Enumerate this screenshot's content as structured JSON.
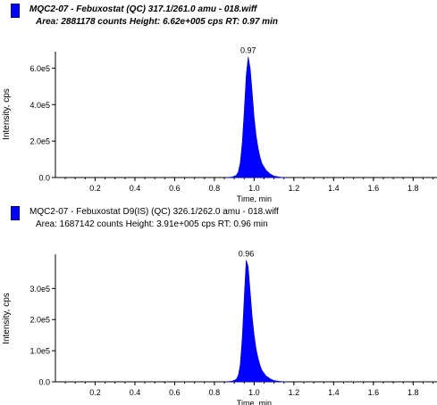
{
  "chart_data": [
    {
      "type": "area",
      "header_line1": "MQC2-07 - Febuxostat (QC) 317.1/261.0 amu - 018.wiff",
      "header_line2": "Area: 2881178 counts  Height: 6.62e+005 cps  RT: 0.97 min",
      "header_style": "bold-italic",
      "xlabel": "Time, min",
      "ylabel": "Intensity, cps",
      "xlim": [
        0.0,
        1.92
      ],
      "ylim": [
        0,
        690000
      ],
      "x_ticks": [
        0.2,
        0.4,
        0.6,
        0.8,
        1.0,
        1.2,
        1.4,
        1.6,
        1.8
      ],
      "x_tick_labels": [
        "0.2",
        "0.4",
        "0.6",
        "0.8",
        "1.0",
        "1.2",
        "1.4",
        "1.6",
        "1.8"
      ],
      "y_ticks": [
        0,
        200000,
        400000,
        600000
      ],
      "y_tick_labels": [
        "0.0",
        "2.0e5",
        "4.0e5",
        "6.0e5"
      ],
      "peak_label": "0.97",
      "peak_label_x": 0.97,
      "peak_label_y": 662000,
      "fill_color": "#0000ff",
      "x": [
        0.86,
        0.89,
        0.91,
        0.92,
        0.93,
        0.94,
        0.95,
        0.96,
        0.97,
        0.98,
        0.99,
        1.0,
        1.01,
        1.02,
        1.03,
        1.04,
        1.06,
        1.08,
        1.1,
        1.13,
        1.16
      ],
      "y": [
        0,
        3000,
        12000,
        30000,
        80000,
        190000,
        360000,
        560000,
        662000,
        600000,
        470000,
        330000,
        230000,
        160000,
        110000,
        75000,
        40000,
        20000,
        8000,
        2500,
        0
      ]
    },
    {
      "type": "area",
      "header_line1": "MQC2-07 - Febuxostat D9(IS) (QC) 326.1/262.0 amu - 018.wiff",
      "header_line2": "Area: 1687142 counts  Height: 3.91e+005 cps  RT: 0.96 min",
      "header_style": "regular",
      "xlabel": "Time, min",
      "ylabel": "Intensity, cps",
      "xlim": [
        0.0,
        1.92
      ],
      "ylim": [
        0,
        410000
      ],
      "x_ticks": [
        0.2,
        0.4,
        0.6,
        0.8,
        1.0,
        1.2,
        1.4,
        1.6,
        1.8
      ],
      "x_tick_labels": [
        "0.2",
        "0.4",
        "0.6",
        "0.8",
        "1.0",
        "1.2",
        "1.4",
        "1.6",
        "1.8"
      ],
      "y_ticks": [
        0,
        100000,
        200000,
        300000
      ],
      "y_tick_labels": [
        "0.0",
        "1.0e5",
        "2.0e5",
        "3.0e5"
      ],
      "peak_label": "0.96",
      "peak_label_x": 0.96,
      "peak_label_y": 391000,
      "fill_color": "#0000ff",
      "x": [
        0.86,
        0.89,
        0.91,
        0.92,
        0.93,
        0.94,
        0.95,
        0.96,
        0.97,
        0.98,
        0.99,
        1.0,
        1.01,
        1.02,
        1.03,
        1.04,
        1.06,
        1.08,
        1.1,
        1.13,
        1.16
      ],
      "y": [
        0,
        2000,
        8000,
        20000,
        55000,
        140000,
        270000,
        391000,
        370000,
        290000,
        210000,
        150000,
        105000,
        75000,
        52000,
        36000,
        19000,
        10000,
        4000,
        1200,
        0
      ]
    }
  ]
}
